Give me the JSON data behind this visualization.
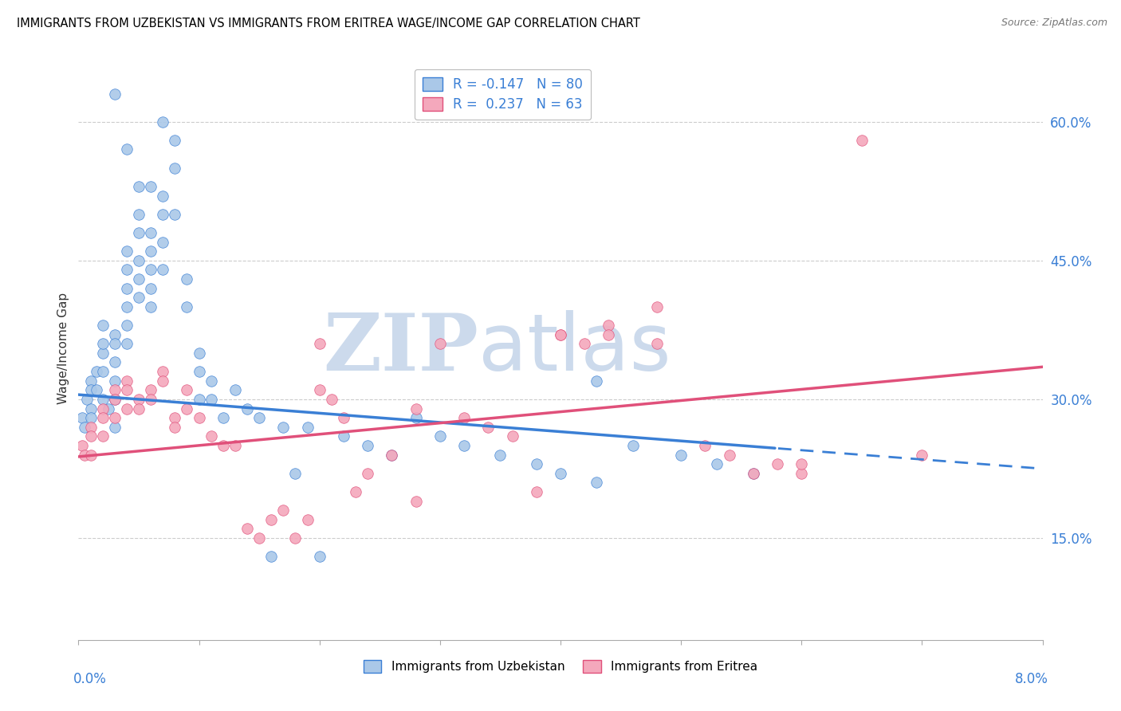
{
  "title": "IMMIGRANTS FROM UZBEKISTAN VS IMMIGRANTS FROM ERITREA WAGE/INCOME GAP CORRELATION CHART",
  "source": "Source: ZipAtlas.com",
  "ylabel": "Wage/Income Gap",
  "ylabel_right_values": [
    0.15,
    0.3,
    0.45,
    0.6
  ],
  "xmin": 0.0,
  "xmax": 0.08,
  "ymin": 0.04,
  "ymax": 0.67,
  "R_uzbekistan": -0.147,
  "N_uzbekistan": 80,
  "R_eritrea": 0.237,
  "N_eritrea": 63,
  "color_uzbekistan": "#aac8e8",
  "color_eritrea": "#f4a8bc",
  "color_trend_uzbekistan": "#3a7fd5",
  "color_trend_eritrea": "#e0507a",
  "watermark_color": "#ccdaec",
  "legend_uzbekistan": "Immigrants from Uzbekistan",
  "legend_eritrea": "Immigrants from Eritrea",
  "trend_uzbekistan_x0": 0.0,
  "trend_uzbekistan_y0": 0.305,
  "trend_uzbekistan_x1": 0.08,
  "trend_uzbekistan_y1": 0.225,
  "trend_uzbekistan_solid_end": 0.058,
  "trend_eritrea_x0": 0.0,
  "trend_eritrea_y0": 0.238,
  "trend_eritrea_x1": 0.08,
  "trend_eritrea_y1": 0.335,
  "uzbekistan_x": [
    0.0003,
    0.0005,
    0.0007,
    0.001,
    0.001,
    0.001,
    0.001,
    0.0015,
    0.0015,
    0.002,
    0.002,
    0.002,
    0.002,
    0.002,
    0.0025,
    0.003,
    0.003,
    0.003,
    0.003,
    0.003,
    0.003,
    0.004,
    0.004,
    0.004,
    0.004,
    0.004,
    0.004,
    0.005,
    0.005,
    0.005,
    0.005,
    0.005,
    0.006,
    0.006,
    0.006,
    0.006,
    0.006,
    0.007,
    0.007,
    0.007,
    0.007,
    0.008,
    0.008,
    0.008,
    0.009,
    0.009,
    0.01,
    0.01,
    0.01,
    0.011,
    0.011,
    0.012,
    0.013,
    0.014,
    0.015,
    0.016,
    0.017,
    0.018,
    0.019,
    0.02,
    0.022,
    0.024,
    0.026,
    0.028,
    0.03,
    0.032,
    0.035,
    0.038,
    0.04,
    0.043,
    0.046,
    0.05,
    0.053,
    0.056,
    0.003,
    0.004,
    0.005,
    0.006,
    0.007,
    0.043
  ],
  "uzbekistan_y": [
    0.28,
    0.27,
    0.3,
    0.32,
    0.31,
    0.29,
    0.28,
    0.33,
    0.31,
    0.35,
    0.38,
    0.36,
    0.33,
    0.3,
    0.29,
    0.37,
    0.36,
    0.34,
    0.32,
    0.3,
    0.27,
    0.4,
    0.46,
    0.44,
    0.42,
    0.38,
    0.36,
    0.5,
    0.48,
    0.45,
    0.43,
    0.41,
    0.48,
    0.46,
    0.44,
    0.42,
    0.4,
    0.52,
    0.5,
    0.47,
    0.44,
    0.58,
    0.55,
    0.5,
    0.43,
    0.4,
    0.35,
    0.33,
    0.3,
    0.32,
    0.3,
    0.28,
    0.31,
    0.29,
    0.28,
    0.13,
    0.27,
    0.22,
    0.27,
    0.13,
    0.26,
    0.25,
    0.24,
    0.28,
    0.26,
    0.25,
    0.24,
    0.23,
    0.22,
    0.21,
    0.25,
    0.24,
    0.23,
    0.22,
    0.63,
    0.57,
    0.53,
    0.53,
    0.6,
    0.32
  ],
  "eritrea_x": [
    0.0003,
    0.0005,
    0.001,
    0.001,
    0.001,
    0.002,
    0.002,
    0.002,
    0.003,
    0.003,
    0.003,
    0.004,
    0.004,
    0.004,
    0.005,
    0.005,
    0.006,
    0.006,
    0.007,
    0.007,
    0.008,
    0.008,
    0.009,
    0.009,
    0.01,
    0.011,
    0.012,
    0.013,
    0.014,
    0.015,
    0.016,
    0.017,
    0.018,
    0.019,
    0.02,
    0.021,
    0.022,
    0.023,
    0.024,
    0.026,
    0.028,
    0.03,
    0.032,
    0.034,
    0.036,
    0.038,
    0.04,
    0.042,
    0.044,
    0.048,
    0.052,
    0.054,
    0.056,
    0.06,
    0.02,
    0.028,
    0.04,
    0.044,
    0.058,
    0.06,
    0.07,
    0.048,
    0.065
  ],
  "eritrea_y": [
    0.25,
    0.24,
    0.27,
    0.26,
    0.24,
    0.29,
    0.28,
    0.26,
    0.31,
    0.3,
    0.28,
    0.32,
    0.31,
    0.29,
    0.3,
    0.29,
    0.31,
    0.3,
    0.33,
    0.32,
    0.28,
    0.27,
    0.31,
    0.29,
    0.28,
    0.26,
    0.25,
    0.25,
    0.16,
    0.15,
    0.17,
    0.18,
    0.15,
    0.17,
    0.31,
    0.3,
    0.28,
    0.2,
    0.22,
    0.24,
    0.19,
    0.36,
    0.28,
    0.27,
    0.26,
    0.2,
    0.37,
    0.36,
    0.38,
    0.36,
    0.25,
    0.24,
    0.22,
    0.22,
    0.36,
    0.29,
    0.37,
    0.37,
    0.23,
    0.23,
    0.24,
    0.4,
    0.58
  ]
}
